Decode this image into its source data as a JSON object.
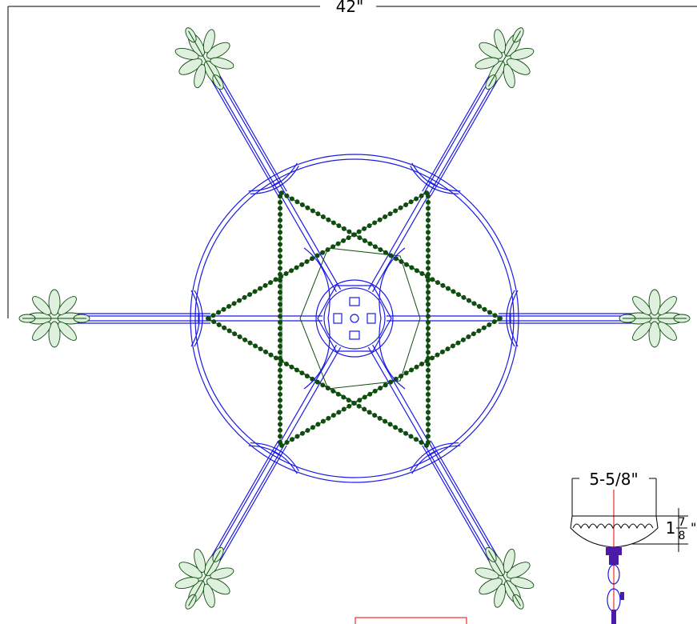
{
  "dimensions": {
    "overall_width": "42\"",
    "canopy_width": "5-5/8\"",
    "canopy_height": {
      "whole": "1",
      "numerator": "7",
      "denominator": "8",
      "unit": "\""
    }
  }
}
